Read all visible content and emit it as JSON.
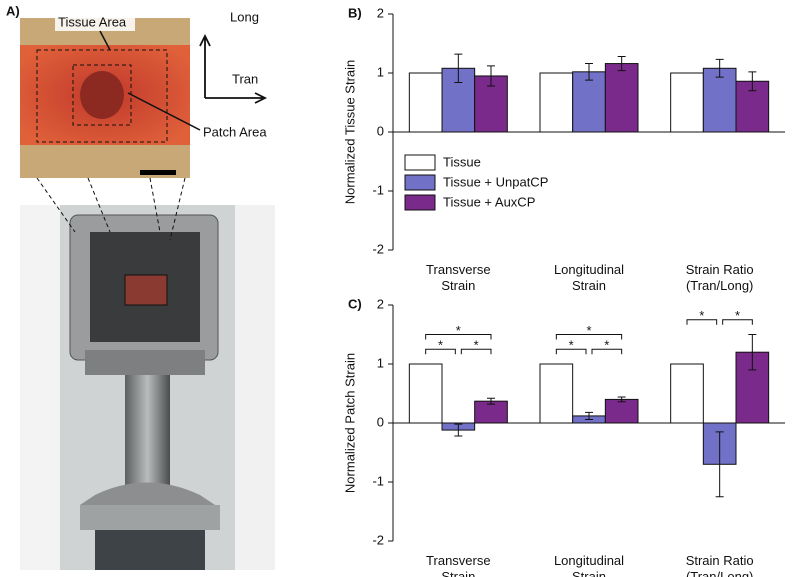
{
  "panel_a": {
    "label": "A)",
    "tissue_area": "Tissue Area",
    "patch_area": "Patch Area",
    "long": "Long",
    "tran": "Tran"
  },
  "chart_data": [
    {
      "type": "bar",
      "panel": "B)",
      "y_label": "Normalized Tissue Strain",
      "categories": [
        "Transverse Strain",
        "Longitudinal Strain",
        "Strain Ratio (Tran/Long)"
      ],
      "series": [
        {
          "name": "Tissue",
          "color": "#ffffff",
          "values": [
            1,
            1,
            1
          ]
        },
        {
          "name": "Tissue + UnpatCP",
          "color": "#7171c8",
          "values": [
            1.08,
            1.02,
            1.08
          ],
          "errors": [
            0.24,
            0.14,
            0.15
          ]
        },
        {
          "name": "Tissue + AuxCP",
          "color": "#7a2a8a",
          "values": [
            0.95,
            1.16,
            0.86
          ],
          "errors": [
            0.17,
            0.12,
            0.16
          ]
        }
      ],
      "ylim": [
        -2,
        2
      ],
      "yticks": [
        -2,
        -1,
        0,
        1,
        2
      ],
      "legend": "lower left"
    },
    {
      "type": "bar",
      "panel": "C)",
      "y_label": "Normalized Patch Strain",
      "categories": [
        "Transverse Strain",
        "Longitudinal Strain",
        "Strain Ratio (Tran/Long)"
      ],
      "series": [
        {
          "name": "Tissue",
          "color": "#ffffff",
          "values": [
            1,
            1,
            1
          ]
        },
        {
          "name": "Tissue + UnpatCP",
          "color": "#7171c8",
          "values": [
            -0.12,
            0.12,
            -0.7
          ],
          "errors": [
            0.1,
            0.06,
            0.55
          ]
        },
        {
          "name": "Tissue + AuxCP",
          "color": "#7a2a8a",
          "values": [
            0.37,
            0.4,
            1.2
          ],
          "errors": [
            0.05,
            0.04,
            0.3
          ]
        }
      ],
      "ylim": [
        -2,
        2
      ],
      "yticks": [
        -2,
        -1,
        0,
        1,
        2
      ],
      "significance": [
        {
          "category": "Transverse Strain",
          "between": [
            "Tissue",
            "Tissue + AuxCP"
          ],
          "label": "*"
        },
        {
          "category": "Transverse Strain",
          "between": [
            "Tissue",
            "Tissue + UnpatCP"
          ],
          "label": "*"
        },
        {
          "category": "Transverse Strain",
          "between": [
            "Tissue + UnpatCP",
            "Tissue + AuxCP"
          ],
          "label": "*"
        },
        {
          "category": "Longitudinal Strain",
          "between": [
            "Tissue",
            "Tissue + AuxCP"
          ],
          "label": "*"
        },
        {
          "category": "Longitudinal Strain",
          "between": [
            "Tissue",
            "Tissue + UnpatCP"
          ],
          "label": "*"
        },
        {
          "category": "Longitudinal Strain",
          "between": [
            "Tissue + UnpatCP",
            "Tissue + AuxCP"
          ],
          "label": "*"
        },
        {
          "category": "Strain Ratio (Tran/Long)",
          "between": [
            "Tissue",
            "Tissue + UnpatCP"
          ],
          "label": "*"
        },
        {
          "category": "Strain Ratio (Tran/Long)",
          "between": [
            "Tissue + UnpatCP",
            "Tissue + AuxCP"
          ],
          "label": "*"
        }
      ]
    }
  ]
}
